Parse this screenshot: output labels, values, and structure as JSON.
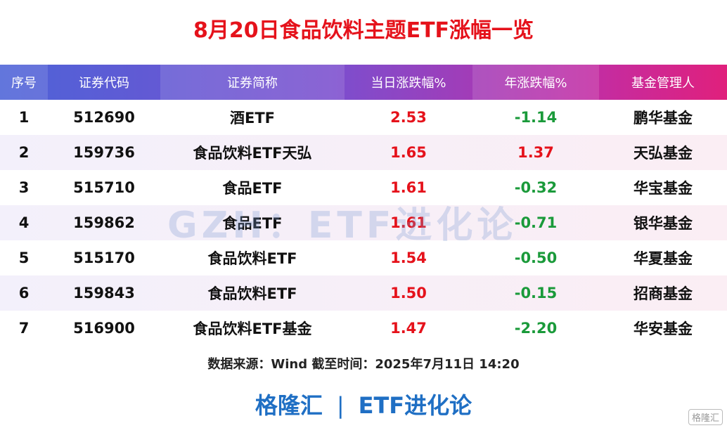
{
  "header": {
    "title": "8月20日食品饮料主题ETF涨幅一览"
  },
  "table": {
    "columns": [
      "序号",
      "证券代码",
      "证券简称",
      "当日涨跌幅%",
      "年涨跌幅%",
      "基金管理人"
    ],
    "rows": [
      [
        "1",
        "512690",
        "酒ETF",
        "2.53",
        "-1.14",
        "鹏华基金"
      ],
      [
        "2",
        "159736",
        "食品饮料ETF天弘",
        "1.65",
        "1.37",
        "天弘基金"
      ],
      [
        "3",
        "515710",
        "食品ETF",
        "1.61",
        "-0.32",
        "华宝基金"
      ],
      [
        "4",
        "159862",
        "食品ETF",
        "1.61",
        "-0.71",
        "银华基金"
      ],
      [
        "5",
        "515170",
        "食品饮料ETF",
        "1.54",
        "-0.50",
        "华夏基金"
      ],
      [
        "6",
        "159843",
        "食品饮料ETF",
        "1.50",
        "-0.15",
        "招商基金"
      ],
      [
        "7",
        "516900",
        "食品饮料ETF基金",
        "1.47",
        "-2.20",
        "华安基金"
      ]
    ]
  },
  "source": "数据来源：Wind 截至时间：2025年7月11日 14:20",
  "watermark": "GZH：ETF进化论",
  "footer": {
    "left": "格隆汇",
    "separator": "|",
    "right": "ETF进化论"
  },
  "corner_logo": "格隆汇"
}
